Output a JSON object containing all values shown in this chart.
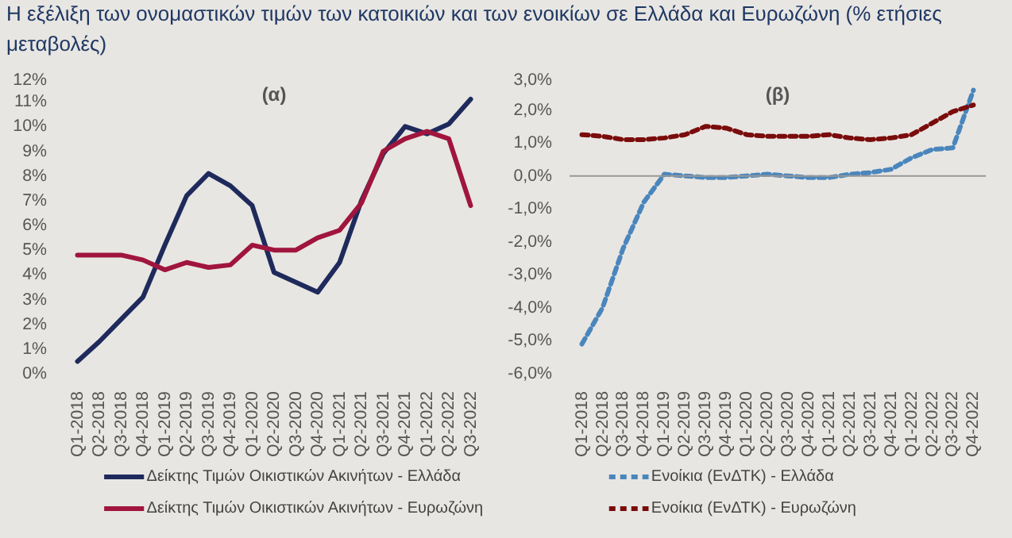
{
  "chart_data": [
    {
      "type": "line",
      "title": "Η εξέλιξη των ονομαστικών τιμών των κατοικιών και των ενοικίων σε Ελλάδα και Ευρωζώνη (% ετήσιες μεταβολές)",
      "subtitle": "(α)",
      "categories": [
        "Q1-2018",
        "Q2-2018",
        "Q3-2018",
        "Q4-2018",
        "Q1-2019",
        "Q2-2019",
        "Q3-2019",
        "Q4-2019",
        "Q1-2020",
        "Q2-2020",
        "Q3-2020",
        "Q4-2020",
        "Q1-2021",
        "Q2-2021",
        "Q3-2021",
        "Q4-2021",
        "Q1-2022",
        "Q2-2022",
        "Q3-2022"
      ],
      "series": [
        {
          "name": "Δείκτης Τιμών Οικιστικών Ακινήτων - Ελλάδα",
          "color": "#1f2a5c",
          "values": [
            0.5,
            1.3,
            2.2,
            3.1,
            5.2,
            7.2,
            8.1,
            7.6,
            6.8,
            4.1,
            3.7,
            3.3,
            4.5,
            7.0,
            8.9,
            10.0,
            9.7,
            10.1,
            11.1
          ]
        },
        {
          "name": "Δείκτης Τιμών Οικιστικών Ακινήτων - Ευρωζώνη",
          "color": "#a0153e",
          "values": [
            4.8,
            4.8,
            4.8,
            4.6,
            4.2,
            4.5,
            4.3,
            4.4,
            5.2,
            5.0,
            5.0,
            5.5,
            5.8,
            6.9,
            9.0,
            9.5,
            9.8,
            9.5,
            6.8
          ]
        }
      ],
      "ylim": [
        0,
        12
      ],
      "yticks": [
        {
          "value": 0,
          "label": "0%"
        },
        {
          "value": 1,
          "label": "1%"
        },
        {
          "value": 2,
          "label": "2%"
        },
        {
          "value": 3,
          "label": "3%"
        },
        {
          "value": 4,
          "label": "4%"
        },
        {
          "value": 5,
          "label": "5%"
        },
        {
          "value": 6,
          "label": "6%"
        },
        {
          "value": 7,
          "label": "7%"
        },
        {
          "value": 8,
          "label": "8%"
        },
        {
          "value": 9,
          "label": "9%"
        },
        {
          "value": 10,
          "label": "10%"
        },
        {
          "value": 11,
          "label": "11%"
        },
        {
          "value": 12,
          "label": "12%"
        }
      ],
      "legend": "bottom",
      "line_style": "solid"
    },
    {
      "type": "line",
      "subtitle": "(β)",
      "categories": [
        "Q1-2018",
        "Q2-2018",
        "Q3-2018",
        "Q4-2018",
        "Q1-2019",
        "Q2-2019",
        "Q3-2019",
        "Q4-2019",
        "Q1-2020",
        "Q2-2020",
        "Q3-2020",
        "Q4-2020",
        "Q1-2021",
        "Q2-2021",
        "Q3-2021",
        "Q4-2021",
        "Q1-2022",
        "Q2-2022",
        "Q3-2022",
        "Q4-2022"
      ],
      "series": [
        {
          "name": "Ενοίκια (ΕνΔΤΚ) - Ελλάδα",
          "color": "#4a86bd",
          "values": [
            -5.1,
            -4.0,
            -2.2,
            -0.8,
            0.05,
            0.0,
            -0.05,
            -0.05,
            0.0,
            0.05,
            0.0,
            -0.05,
            -0.05,
            0.05,
            0.1,
            0.2,
            0.55,
            0.8,
            0.85,
            2.6
          ]
        },
        {
          "name": "Ενοίκια (ΕνΔΤΚ) - Ευρωζώνη",
          "color": "#7a0c0c",
          "values": [
            1.25,
            1.2,
            1.1,
            1.1,
            1.15,
            1.25,
            1.5,
            1.45,
            1.25,
            1.2,
            1.2,
            1.2,
            1.25,
            1.15,
            1.1,
            1.15,
            1.25,
            1.6,
            1.95,
            2.15
          ]
        }
      ],
      "ylim": [
        -6,
        3
      ],
      "yticks": [
        {
          "value": -6,
          "label": "-6,0%"
        },
        {
          "value": -5,
          "label": "-5,0%"
        },
        {
          "value": -4,
          "label": "-4,0%"
        },
        {
          "value": -3,
          "label": "-3,0%"
        },
        {
          "value": -2,
          "label": "-2,0%"
        },
        {
          "value": -1,
          "label": "-1,0%"
        },
        {
          "value": 0,
          "label": "0,0%"
        },
        {
          "value": 1,
          "label": "1,0%"
        },
        {
          "value": 2,
          "label": "2,0%"
        },
        {
          "value": 3,
          "label": "3,0%"
        }
      ],
      "ref_lines": [
        {
          "axis": "y",
          "value": 0,
          "color": "#999999"
        }
      ],
      "legend": "bottom",
      "line_style": "dashed"
    }
  ]
}
